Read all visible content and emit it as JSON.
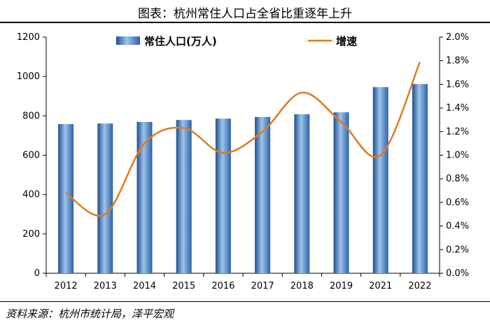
{
  "figure": {
    "title": "图表：杭州常住人口占全省比重逐年上升",
    "source": "资料来源：杭州市统计局，泽平宏观"
  },
  "chart_data": {
    "type": "bar+line",
    "categories": [
      "2012",
      "2013",
      "2014",
      "2015",
      "2016",
      "2017",
      "2018",
      "2019",
      "2021",
      "2022"
    ],
    "series": [
      {
        "name": "常住人口(万人)",
        "type": "bar",
        "axis": "left",
        "color": "#2f6bb5",
        "values": [
          758,
          761,
          769,
          779,
          786,
          794,
          808,
          818,
          946,
          962
        ]
      },
      {
        "name": "增速",
        "type": "line",
        "axis": "right",
        "color": "#e07b1f",
        "values": [
          0.68,
          0.5,
          1.1,
          1.23,
          1.02,
          1.2,
          1.53,
          1.28,
          1.0,
          1.79
        ]
      }
    ],
    "y_left": {
      "min": 0,
      "max": 1200,
      "ticks": [
        0,
        200,
        400,
        600,
        800,
        1000,
        1200
      ]
    },
    "y_right": {
      "min": 0,
      "max": 2.0,
      "ticks": [
        "0.0%",
        "0.2%",
        "0.4%",
        "0.6%",
        "0.8%",
        "1.0%",
        "1.2%",
        "1.4%",
        "1.6%",
        "1.8%",
        "2.0%"
      ]
    },
    "legend_position": "top"
  }
}
